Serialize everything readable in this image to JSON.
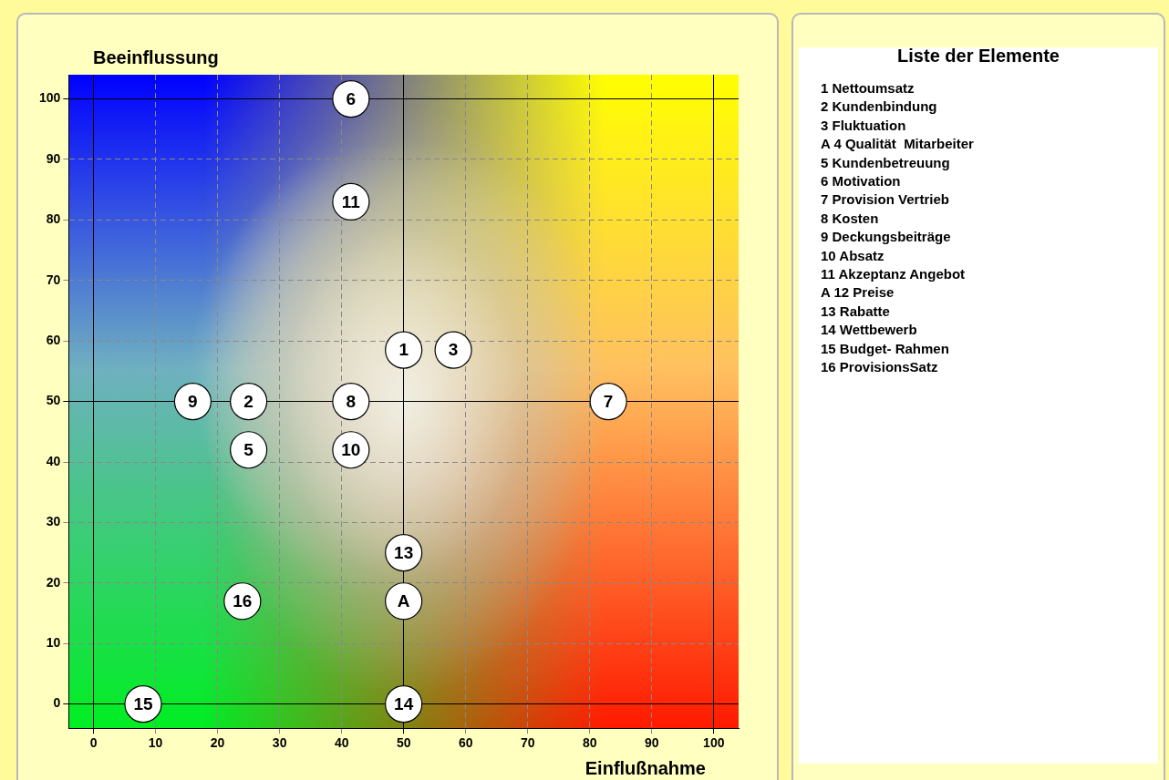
{
  "chart_data": [
    {
      "type": "scatter",
      "xlabel": "Einflußnahme",
      "ylabel": "Beeinflussung",
      "x": [
        50,
        25,
        58,
        25,
        41.5,
        83,
        41.5,
        16,
        41.5,
        41.5,
        50,
        24,
        50,
        8,
        50
      ],
      "series": [
        {
          "color": "#ffffff",
          "values": [
            58.5,
            50,
            58.5,
            42,
            100,
            50,
            50,
            50,
            42,
            83,
            25,
            17,
            17,
            0,
            0
          ]
        }
      ],
      "marker": "circle",
      "xlim": [
        -4,
        104
      ],
      "ylim": [
        -4,
        104
      ],
      "xticks": [
        0,
        10,
        20,
        30,
        40,
        50,
        60,
        70,
        80,
        90,
        100
      ],
      "yticks": [
        0,
        10,
        20,
        30,
        40,
        50,
        60,
        70,
        80,
        90,
        100
      ],
      "grid": true,
      "legend": false,
      "annotations": [
        {
          "text": "1",
          "x": 50,
          "y": 58.5
        },
        {
          "text": "2",
          "x": 25,
          "y": 50
        },
        {
          "text": "3",
          "x": 58,
          "y": 58.5
        },
        {
          "text": "5",
          "x": 25,
          "y": 42
        },
        {
          "text": "6",
          "x": 41.5,
          "y": 100
        },
        {
          "text": "7",
          "x": 83,
          "y": 50
        },
        {
          "text": "8",
          "x": 41.5,
          "y": 50
        },
        {
          "text": "9",
          "x": 16,
          "y": 50
        },
        {
          "text": "10",
          "x": 41.5,
          "y": 42
        },
        {
          "text": "11",
          "x": 41.5,
          "y": 83
        },
        {
          "text": "13",
          "x": 50,
          "y": 25
        },
        {
          "text": "16",
          "x": 24,
          "y": 17
        },
        {
          "text": "A",
          "x": 50,
          "y": 17
        },
        {
          "text": "15",
          "x": 8,
          "y": 0
        },
        {
          "text": "14",
          "x": 50,
          "y": 0
        }
      ]
    },
    {
      "type": "other",
      "title": "Liste der Elemente",
      "annotations": [
        "1 Nettoumsatz",
        "2 Kundenbindung",
        "3 Fluktuation",
        "A 4 Qualität  Mitarbeiter",
        "5 Kundenbetreuung",
        "6 Motivation",
        "7 Provision Vertrieb",
        "8 Kosten",
        "9 Deckungsbeiträge",
        "10 Absatz",
        "11 Akzeptanz Angebot",
        "A 12 Preise",
        "13 Rabatte",
        "14 Wettbewerb",
        "15 Budget- Rahmen",
        "16 ProvisionsSatz"
      ]
    }
  ]
}
